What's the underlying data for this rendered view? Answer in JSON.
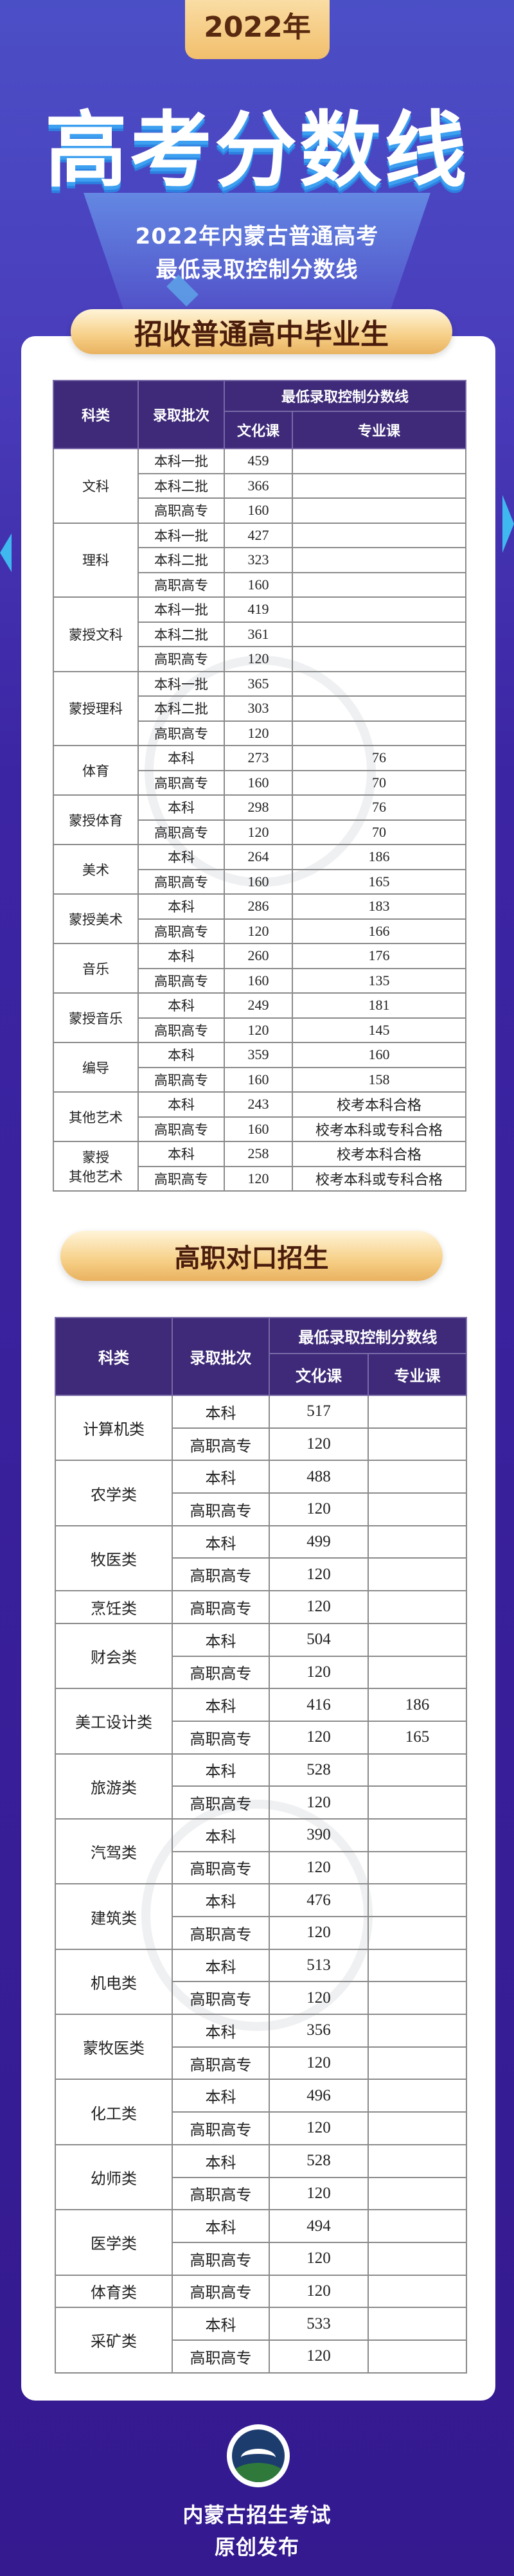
{
  "header": {
    "year_badge": "2022年",
    "title": "高考分数线",
    "subtitle_line1": "2022年内蒙古普通高考",
    "subtitle_line2": "最低录取控制分数线"
  },
  "colors": {
    "background": "#3c25a3",
    "table_header": "#3e2a78",
    "banner": "#f6cf86",
    "banner_text": "#4a1c0c"
  },
  "section1": {
    "title": "招收普通高中毕业生",
    "columns": {
      "category": "科类",
      "batch": "录取批次",
      "score_group": "最低录取控制分数线",
      "culture": "文化课",
      "major": "专业课"
    },
    "groups": [
      {
        "category": "文科",
        "rows": [
          {
            "batch": "本科一批",
            "culture": "459",
            "major": ""
          },
          {
            "batch": "本科二批",
            "culture": "366",
            "major": ""
          },
          {
            "batch": "高职高专",
            "culture": "160",
            "major": ""
          }
        ]
      },
      {
        "category": "理科",
        "rows": [
          {
            "batch": "本科一批",
            "culture": "427",
            "major": ""
          },
          {
            "batch": "本科二批",
            "culture": "323",
            "major": ""
          },
          {
            "batch": "高职高专",
            "culture": "160",
            "major": ""
          }
        ]
      },
      {
        "category": "蒙授文科",
        "rows": [
          {
            "batch": "本科一批",
            "culture": "419",
            "major": ""
          },
          {
            "batch": "本科二批",
            "culture": "361",
            "major": ""
          },
          {
            "batch": "高职高专",
            "culture": "120",
            "major": ""
          }
        ]
      },
      {
        "category": "蒙授理科",
        "rows": [
          {
            "batch": "本科一批",
            "culture": "365",
            "major": ""
          },
          {
            "batch": "本科二批",
            "culture": "303",
            "major": ""
          },
          {
            "batch": "高职高专",
            "culture": "120",
            "major": ""
          }
        ]
      },
      {
        "category": "体育",
        "rows": [
          {
            "batch": "本科",
            "culture": "273",
            "major": "76"
          },
          {
            "batch": "高职高专",
            "culture": "160",
            "major": "70"
          }
        ]
      },
      {
        "category": "蒙授体育",
        "rows": [
          {
            "batch": "本科",
            "culture": "298",
            "major": "76"
          },
          {
            "batch": "高职高专",
            "culture": "120",
            "major": "70"
          }
        ]
      },
      {
        "category": "美术",
        "rows": [
          {
            "batch": "本科",
            "culture": "264",
            "major": "186"
          },
          {
            "batch": "高职高专",
            "culture": "160",
            "major": "165"
          }
        ]
      },
      {
        "category": "蒙授美术",
        "rows": [
          {
            "batch": "本科",
            "culture": "286",
            "major": "183"
          },
          {
            "batch": "高职高专",
            "culture": "120",
            "major": "166"
          }
        ]
      },
      {
        "category": "音乐",
        "rows": [
          {
            "batch": "本科",
            "culture": "260",
            "major": "176"
          },
          {
            "batch": "高职高专",
            "culture": "160",
            "major": "135"
          }
        ]
      },
      {
        "category": "蒙授音乐",
        "rows": [
          {
            "batch": "本科",
            "culture": "249",
            "major": "181"
          },
          {
            "batch": "高职高专",
            "culture": "120",
            "major": "145"
          }
        ]
      },
      {
        "category": "编导",
        "rows": [
          {
            "batch": "本科",
            "culture": "359",
            "major": "160"
          },
          {
            "batch": "高职高专",
            "culture": "160",
            "major": "158"
          }
        ]
      },
      {
        "category": "其他艺术",
        "rows": [
          {
            "batch": "本科",
            "culture": "243",
            "major": "校考本科合格"
          },
          {
            "batch": "高职高专",
            "culture": "160",
            "major": "校考本科或专科合格"
          }
        ]
      },
      {
        "category": "蒙授\n其他艺术",
        "rows": [
          {
            "batch": "本科",
            "culture": "258",
            "major": "校考本科合格"
          },
          {
            "batch": "高职高专",
            "culture": "120",
            "major": "校考本科或专科合格"
          }
        ]
      }
    ]
  },
  "section2": {
    "title": "高职对口招生",
    "columns": {
      "category": "科类",
      "batch": "录取批次",
      "score_group": "最低录取控制分数线",
      "culture": "文化课",
      "major": "专业课"
    },
    "groups": [
      {
        "category": "计算机类",
        "rows": [
          {
            "batch": "本科",
            "culture": "517",
            "major": ""
          },
          {
            "batch": "高职高专",
            "culture": "120",
            "major": ""
          }
        ]
      },
      {
        "category": "农学类",
        "rows": [
          {
            "batch": "本科",
            "culture": "488",
            "major": ""
          },
          {
            "batch": "高职高专",
            "culture": "120",
            "major": ""
          }
        ]
      },
      {
        "category": "牧医类",
        "rows": [
          {
            "batch": "本科",
            "culture": "499",
            "major": ""
          },
          {
            "batch": "高职高专",
            "culture": "120",
            "major": ""
          }
        ]
      },
      {
        "category": "烹饪类",
        "rows": [
          {
            "batch": "高职高专",
            "culture": "120",
            "major": ""
          }
        ]
      },
      {
        "category": "财会类",
        "rows": [
          {
            "batch": "本科",
            "culture": "504",
            "major": ""
          },
          {
            "batch": "高职高专",
            "culture": "120",
            "major": ""
          }
        ]
      },
      {
        "category": "美工设计类",
        "rows": [
          {
            "batch": "本科",
            "culture": "416",
            "major": "186"
          },
          {
            "batch": "高职高专",
            "culture": "120",
            "major": "165"
          }
        ]
      },
      {
        "category": "旅游类",
        "rows": [
          {
            "batch": "本科",
            "culture": "528",
            "major": ""
          },
          {
            "batch": "高职高专",
            "culture": "120",
            "major": ""
          }
        ]
      },
      {
        "category": "汽驾类",
        "rows": [
          {
            "batch": "本科",
            "culture": "390",
            "major": ""
          },
          {
            "batch": "高职高专",
            "culture": "120",
            "major": ""
          }
        ]
      },
      {
        "category": "建筑类",
        "rows": [
          {
            "batch": "本科",
            "culture": "476",
            "major": ""
          },
          {
            "batch": "高职高专",
            "culture": "120",
            "major": ""
          }
        ]
      },
      {
        "category": "机电类",
        "rows": [
          {
            "batch": "本科",
            "culture": "513",
            "major": ""
          },
          {
            "batch": "高职高专",
            "culture": "120",
            "major": ""
          }
        ]
      },
      {
        "category": "蒙牧医类",
        "rows": [
          {
            "batch": "本科",
            "culture": "356",
            "major": ""
          },
          {
            "batch": "高职高专",
            "culture": "120",
            "major": ""
          }
        ]
      },
      {
        "category": "化工类",
        "rows": [
          {
            "batch": "本科",
            "culture": "496",
            "major": ""
          },
          {
            "batch": "高职高专",
            "culture": "120",
            "major": ""
          }
        ]
      },
      {
        "category": "幼师类",
        "rows": [
          {
            "batch": "本科",
            "culture": "528",
            "major": ""
          },
          {
            "batch": "高职高专",
            "culture": "120",
            "major": ""
          }
        ]
      },
      {
        "category": "医学类",
        "rows": [
          {
            "batch": "本科",
            "culture": "494",
            "major": ""
          },
          {
            "batch": "高职高专",
            "culture": "120",
            "major": ""
          }
        ]
      },
      {
        "category": "体育类",
        "rows": [
          {
            "batch": "高职高专",
            "culture": "120",
            "major": ""
          }
        ]
      },
      {
        "category": "采矿类",
        "rows": [
          {
            "batch": "本科",
            "culture": "533",
            "major": ""
          },
          {
            "batch": "高职高专",
            "culture": "120",
            "major": ""
          }
        ]
      }
    ]
  },
  "footer": {
    "logo_icon": "exam-authority-emblem",
    "org_name": "内蒙古招生考试",
    "tagline": "原创发布"
  }
}
